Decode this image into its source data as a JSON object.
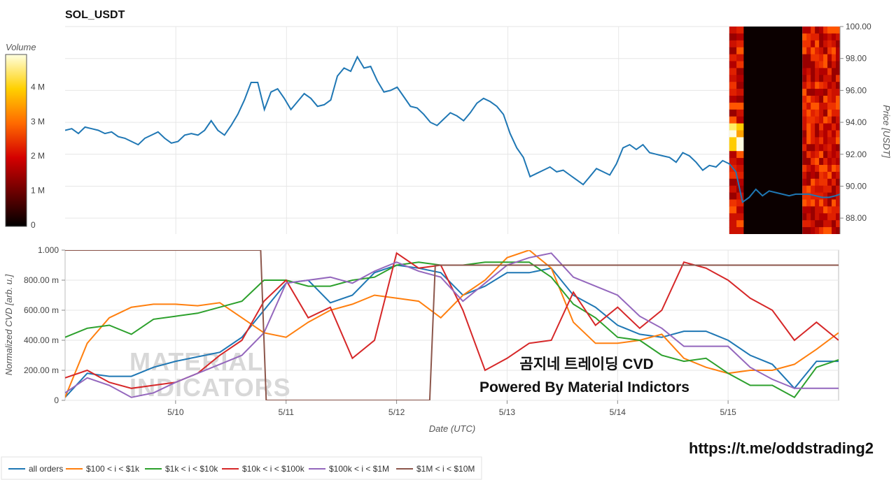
{
  "title": "SOL_USDT",
  "colorbar": {
    "label": "Volume",
    "ticks": [
      "0",
      "1 M",
      "2 M",
      "3 M",
      "4 M"
    ],
    "tick_values": [
      0,
      1,
      2,
      3,
      4
    ]
  },
  "overlay": {
    "line1": "곰지네 트레이딩 CVD",
    "line2": "Powered By Material Indictors",
    "link": "https://t.me/oddstrading2",
    "watermark1": "MATERIAL",
    "watermark2": "INDICATORS"
  },
  "chart_data": [
    {
      "type": "line",
      "title": "SOL_USDT",
      "ylabel": "Price [USDT]",
      "ylim": [
        87.0,
        100.0
      ],
      "yticks": [
        "88.00",
        "90.00",
        "92.00",
        "94.00",
        "96.00",
        "98.00",
        "100.00"
      ],
      "ytick_values": [
        88,
        90,
        92,
        94,
        96,
        98,
        100
      ],
      "x_range": [
        0,
        7
      ],
      "heatmap_regions": [
        {
          "from": 6.0,
          "to": 6.13,
          "kind": "orderbook heatmap"
        },
        {
          "from": 6.13,
          "to": 6.66,
          "kind": "no data"
        },
        {
          "from": 6.66,
          "to": 7.0,
          "kind": "orderbook heatmap"
        }
      ],
      "series": [
        {
          "color": "#1f77b4",
          "x": [
            0.0,
            0.06,
            0.12,
            0.18,
            0.24,
            0.3,
            0.36,
            0.42,
            0.48,
            0.54,
            0.6,
            0.66,
            0.72,
            0.78,
            0.84,
            0.9,
            0.96,
            1.02,
            1.08,
            1.14,
            1.2,
            1.26,
            1.32,
            1.38,
            1.44,
            1.5,
            1.56,
            1.62,
            1.68,
            1.74,
            1.8,
            1.86,
            1.92,
            1.98,
            2.04,
            2.1,
            2.16,
            2.22,
            2.28,
            2.34,
            2.4,
            2.46,
            2.52,
            2.58,
            2.64,
            2.7,
            2.76,
            2.82,
            2.88,
            2.94,
            3.0,
            3.06,
            3.12,
            3.18,
            3.24,
            3.3,
            3.36,
            3.42,
            3.48,
            3.54,
            3.6,
            3.66,
            3.72,
            3.78,
            3.84,
            3.9,
            3.96,
            4.02,
            4.08,
            4.14,
            4.2,
            4.26,
            4.32,
            4.38,
            4.44,
            4.5,
            4.56,
            4.62,
            4.68,
            4.74,
            4.8,
            4.86,
            4.92,
            4.98,
            5.04,
            5.1,
            5.16,
            5.22,
            5.28,
            5.34,
            5.4,
            5.46,
            5.52,
            5.58,
            5.64,
            5.7,
            5.76,
            5.82,
            5.88,
            5.94,
            6.0,
            6.06,
            6.12,
            6.18,
            6.24,
            6.3,
            6.36,
            6.42,
            6.48,
            6.54,
            6.6,
            6.66,
            6.72,
            6.78,
            6.84,
            6.9,
            6.96,
            7.0
          ],
          "values": [
            93.5,
            93.6,
            93.3,
            93.7,
            93.6,
            93.5,
            93.3,
            93.4,
            93.1,
            93.0,
            92.8,
            92.6,
            93.0,
            93.2,
            93.4,
            93.0,
            92.7,
            92.8,
            93.2,
            93.3,
            93.2,
            93.5,
            94.1,
            93.5,
            93.2,
            93.8,
            94.5,
            95.4,
            96.5,
            96.5,
            94.8,
            95.9,
            96.1,
            95.5,
            94.8,
            95.3,
            95.8,
            95.5,
            95.0,
            95.1,
            95.4,
            96.9,
            97.4,
            97.2,
            98.1,
            97.4,
            97.5,
            96.6,
            95.9,
            96.0,
            96.2,
            95.6,
            95.0,
            94.9,
            94.5,
            94.0,
            93.8,
            94.2,
            94.6,
            94.4,
            94.1,
            94.6,
            95.2,
            95.5,
            95.3,
            95.0,
            94.5,
            93.3,
            92.4,
            91.8,
            90.6,
            90.8,
            91.0,
            91.2,
            90.9,
            91.0,
            90.7,
            90.4,
            90.1,
            90.6,
            91.1,
            90.9,
            90.7,
            91.4,
            92.4,
            92.6,
            92.3,
            92.6,
            92.1,
            92.0,
            91.9,
            91.8,
            91.5,
            92.1,
            91.9,
            91.5,
            91.0,
            91.3,
            91.2,
            91.6,
            91.4,
            90.9,
            89.0,
            89.3,
            89.8,
            89.4,
            89.7,
            89.6,
            89.5,
            89.4,
            89.5,
            89.5,
            89.5,
            89.4,
            89.3,
            89.3,
            89.4,
            89.5
          ]
        }
      ]
    },
    {
      "type": "line",
      "xlabel": "Date (UTC)",
      "ylabel": "Normalized CVD [arb. u.]",
      "ylim": [
        0,
        1.0
      ],
      "yticks": [
        "0",
        "200.00 m",
        "400.00 m",
        "600.00 m",
        "800.00 m",
        "1.000"
      ],
      "ytick_values": [
        0,
        0.2,
        0.4,
        0.6,
        0.8,
        1.0
      ],
      "categories": [
        "5/10",
        "5/11",
        "5/12",
        "5/13",
        "5/14",
        "5/15"
      ],
      "category_positions": [
        1,
        2,
        3,
        4,
        5,
        6
      ],
      "x_range": [
        0,
        7
      ],
      "legend_position": "bottom",
      "series": [
        {
          "name": "all orders",
          "color": "#1f77b4",
          "x": [
            0,
            0.2,
            0.4,
            0.6,
            0.8,
            1.0,
            1.2,
            1.4,
            1.6,
            1.8,
            2.0,
            2.2,
            2.4,
            2.6,
            2.8,
            3.0,
            3.2,
            3.4,
            3.6,
            3.8,
            4.0,
            4.2,
            4.4,
            4.6,
            4.8,
            5.0,
            5.2,
            5.4,
            5.6,
            5.8,
            6.0,
            6.2,
            6.4,
            6.6,
            6.8,
            7.0
          ],
          "values": [
            0.02,
            0.18,
            0.16,
            0.16,
            0.22,
            0.26,
            0.29,
            0.32,
            0.42,
            0.6,
            0.78,
            0.8,
            0.65,
            0.7,
            0.85,
            0.9,
            0.88,
            0.85,
            0.7,
            0.76,
            0.85,
            0.85,
            0.88,
            0.7,
            0.62,
            0.5,
            0.44,
            0.42,
            0.46,
            0.46,
            0.4,
            0.3,
            0.24,
            0.08,
            0.26,
            0.26
          ]
        },
        {
          "name": "$100 < i < $1k",
          "color": "#ff7f0e",
          "x": [
            0,
            0.2,
            0.4,
            0.6,
            0.8,
            1.0,
            1.2,
            1.4,
            1.6,
            1.8,
            2.0,
            2.2,
            2.4,
            2.6,
            2.8,
            3.0,
            3.2,
            3.4,
            3.6,
            3.8,
            4.0,
            4.2,
            4.4,
            4.6,
            4.8,
            5.0,
            5.2,
            5.4,
            5.6,
            5.8,
            6.0,
            6.2,
            6.4,
            6.6,
            6.8,
            7.0
          ],
          "values": [
            0.02,
            0.38,
            0.55,
            0.62,
            0.64,
            0.64,
            0.63,
            0.65,
            0.55,
            0.45,
            0.42,
            0.52,
            0.6,
            0.64,
            0.7,
            0.68,
            0.66,
            0.55,
            0.7,
            0.8,
            0.95,
            1.0,
            0.88,
            0.52,
            0.38,
            0.38,
            0.4,
            0.44,
            0.28,
            0.22,
            0.18,
            0.2,
            0.2,
            0.24,
            0.34,
            0.45
          ]
        },
        {
          "name": "$1k < i < $10k",
          "color": "#2ca02c",
          "x": [
            0,
            0.2,
            0.4,
            0.6,
            0.8,
            1.0,
            1.2,
            1.4,
            1.6,
            1.8,
            2.0,
            2.2,
            2.4,
            2.6,
            2.8,
            3.0,
            3.2,
            3.4,
            3.6,
            3.8,
            4.0,
            4.2,
            4.4,
            4.6,
            4.8,
            5.0,
            5.2,
            5.4,
            5.6,
            5.8,
            6.0,
            6.2,
            6.4,
            6.6,
            6.8,
            7.0
          ],
          "values": [
            0.42,
            0.48,
            0.5,
            0.44,
            0.54,
            0.56,
            0.58,
            0.62,
            0.66,
            0.8,
            0.8,
            0.76,
            0.76,
            0.8,
            0.82,
            0.9,
            0.92,
            0.9,
            0.9,
            0.92,
            0.92,
            0.92,
            0.82,
            0.64,
            0.55,
            0.42,
            0.4,
            0.3,
            0.26,
            0.28,
            0.18,
            0.1,
            0.1,
            0.02,
            0.22,
            0.27
          ]
        },
        {
          "name": "$10k < i < $100k",
          "color": "#d62728",
          "x": [
            0,
            0.2,
            0.4,
            0.6,
            0.8,
            1.0,
            1.2,
            1.4,
            1.6,
            1.8,
            2.0,
            2.2,
            2.4,
            2.6,
            2.8,
            3.0,
            3.2,
            3.4,
            3.6,
            3.8,
            4.0,
            4.2,
            4.4,
            4.6,
            4.8,
            5.0,
            5.2,
            5.4,
            5.6,
            5.8,
            6.0,
            6.2,
            6.4,
            6.6,
            6.8,
            7.0
          ],
          "values": [
            0.15,
            0.2,
            0.12,
            0.08,
            0.1,
            0.12,
            0.18,
            0.3,
            0.4,
            0.66,
            0.8,
            0.55,
            0.62,
            0.28,
            0.4,
            0.98,
            0.88,
            0.9,
            0.6,
            0.2,
            0.28,
            0.38,
            0.4,
            0.72,
            0.5,
            0.62,
            0.48,
            0.6,
            0.92,
            0.88,
            0.8,
            0.68,
            0.6,
            0.4,
            0.52,
            0.4
          ]
        },
        {
          "name": "$100k < i < $1M",
          "color": "#9467bd",
          "x": [
            0,
            0.2,
            0.4,
            0.6,
            0.8,
            1.0,
            1.2,
            1.4,
            1.6,
            1.8,
            2.0,
            2.2,
            2.4,
            2.6,
            2.8,
            3.0,
            3.2,
            3.4,
            3.6,
            3.8,
            4.0,
            4.2,
            4.4,
            4.6,
            4.8,
            5.0,
            5.2,
            5.4,
            5.6,
            5.8,
            6.0,
            6.2,
            6.4,
            6.6,
            6.8,
            7.0
          ],
          "values": [
            0.05,
            0.15,
            0.1,
            0.02,
            0.05,
            0.12,
            0.18,
            0.24,
            0.3,
            0.45,
            0.78,
            0.8,
            0.82,
            0.78,
            0.86,
            0.92,
            0.86,
            0.82,
            0.66,
            0.78,
            0.9,
            0.95,
            0.98,
            0.82,
            0.76,
            0.7,
            0.56,
            0.48,
            0.36,
            0.36,
            0.36,
            0.22,
            0.14,
            0.08,
            0.08,
            0.08
          ]
        },
        {
          "name": "$1M < i < $10M",
          "color": "#8c564b",
          "x": [
            0,
            0.5,
            1.0,
            1.5,
            1.77,
            1.82,
            2.0,
            2.5,
            3.0,
            3.3,
            3.35,
            4.0,
            4.5,
            5.0,
            5.5,
            6.0,
            6.5,
            7.0
          ],
          "values": [
            1.0,
            1.0,
            1.0,
            1.0,
            1.0,
            0.0,
            0.0,
            0.0,
            0.0,
            0.0,
            0.9,
            0.9,
            0.9,
            0.9,
            0.9,
            0.9,
            0.9,
            0.9
          ]
        }
      ]
    }
  ]
}
